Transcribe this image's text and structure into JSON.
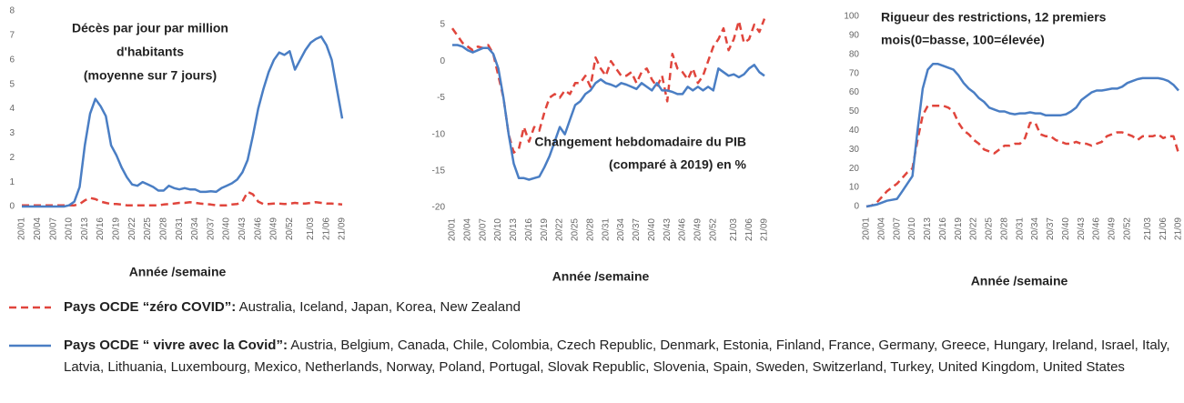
{
  "chart_data": [
    {
      "type": "line",
      "title": [
        "Décès par jour par million",
        "d'habitants",
        "(moyenne sur 7 jours)"
      ],
      "x_label": "Année /semaine",
      "categories": [
        "20/01",
        null,
        null,
        "20/04",
        null,
        null,
        "20/07",
        null,
        null,
        "20/10",
        null,
        null,
        "20/13",
        null,
        null,
        "20/16",
        null,
        null,
        "20/19",
        null,
        null,
        "20/22",
        null,
        null,
        "20/25",
        null,
        null,
        "20/28",
        null,
        null,
        "20/31",
        null,
        null,
        "20/34",
        null,
        null,
        "20/37",
        null,
        null,
        "20/40",
        null,
        null,
        "20/43",
        null,
        null,
        "20/46",
        null,
        null,
        "20/49",
        null,
        null,
        "20/52",
        null,
        null,
        null,
        "21/03",
        null,
        null,
        "21/06",
        null,
        null,
        "21/09"
      ],
      "ylim": [
        0,
        8
      ],
      "yticks": [
        0,
        1,
        2,
        3,
        4,
        5,
        6,
        7,
        8
      ],
      "series": [
        {
          "color": "#e0453c",
          "dash": true,
          "values": [
            0.05,
            0.05,
            0.05,
            0.05,
            0.05,
            0.05,
            0.05,
            0.05,
            0.05,
            0.05,
            0.05,
            0.1,
            0.25,
            0.35,
            0.3,
            0.2,
            0.15,
            0.1,
            0.1,
            0.08,
            0.05,
            0.05,
            0.05,
            0.05,
            0.05,
            0.05,
            0.05,
            0.08,
            0.1,
            0.12,
            0.15,
            0.15,
            0.18,
            0.15,
            0.12,
            0.1,
            0.08,
            0.05,
            0.05,
            0.05,
            0.08,
            0.1,
            0.2,
            0.6,
            0.5,
            0.2,
            0.1,
            0.1,
            0.12,
            0.12,
            0.1,
            0.12,
            0.15,
            0.12,
            0.12,
            0.15,
            0.18,
            0.15,
            0.12,
            0.12,
            0.1,
            0.08
          ]
        },
        {
          "color": "#4a7ec4",
          "dash": false,
          "values": [
            0,
            0,
            0,
            0,
            0,
            0,
            0,
            0,
            0,
            0.05,
            0.2,
            0.8,
            2.5,
            3.8,
            4.4,
            4.1,
            3.7,
            2.5,
            2.1,
            1.6,
            1.2,
            0.9,
            0.85,
            1.0,
            0.9,
            0.8,
            0.65,
            0.65,
            0.85,
            0.75,
            0.7,
            0.75,
            0.7,
            0.7,
            0.6,
            0.6,
            0.62,
            0.6,
            0.75,
            0.85,
            0.95,
            1.1,
            1.4,
            1.9,
            2.9,
            4.0,
            4.8,
            5.5,
            6.0,
            6.3,
            6.2,
            6.35,
            5.6,
            6.0,
            6.4,
            6.7,
            6.85,
            6.95,
            6.6,
            6.0,
            4.8,
            3.6
          ]
        }
      ]
    },
    {
      "type": "line",
      "title": [
        "Changement hebdomadaire du PIB",
        "(comparé à 2019) en %"
      ],
      "x_label": "Année /semaine",
      "categories": [
        "20/01",
        null,
        null,
        "20/04",
        null,
        null,
        "20/07",
        null,
        null,
        "20/10",
        null,
        null,
        "20/13",
        null,
        null,
        "20/16",
        null,
        null,
        "20/19",
        null,
        null,
        "20/22",
        null,
        null,
        "20/25",
        null,
        null,
        "20/28",
        null,
        null,
        "20/31",
        null,
        null,
        "20/34",
        null,
        null,
        "20/37",
        null,
        null,
        "20/40",
        null,
        null,
        "20/43",
        null,
        null,
        "20/46",
        null,
        null,
        "20/49",
        null,
        null,
        "20/52",
        null,
        null,
        null,
        "21/03",
        null,
        null,
        "21/06",
        null,
        null,
        "21/09"
      ],
      "ylim": [
        -20,
        6
      ],
      "yticks": [
        -20,
        -15,
        -10,
        -5,
        0,
        5
      ],
      "series": [
        {
          "color": "#e0453c",
          "dash": true,
          "values": [
            4.5,
            3.5,
            2.5,
            2,
            1.5,
            2,
            1.8,
            2.2,
            1,
            -2,
            -5,
            -10,
            -12.5,
            -12,
            -9,
            -11,
            -9,
            -9.5,
            -7,
            -5,
            -4.5,
            -5,
            -4,
            -4.5,
            -3,
            -3,
            -2,
            -3.5,
            0.5,
            -1,
            -2,
            0,
            -1,
            -2,
            -2,
            -1.5,
            -3,
            -1.5,
            -1,
            -2.5,
            -3.5,
            -2,
            -5.5,
            1,
            -1,
            -1.5,
            -2.5,
            -1,
            -3,
            -2,
            0,
            2,
            3,
            4.5,
            1.5,
            3,
            5.5,
            2.5,
            3,
            5,
            4,
            5.8
          ]
        },
        {
          "color": "#4a7ec4",
          "dash": false,
          "values": [
            2.2,
            2.2,
            2.0,
            1.5,
            1.2,
            1.5,
            1.8,
            1.8,
            1.0,
            -1,
            -5,
            -10,
            -14,
            -16,
            -16,
            -16.2,
            -16,
            -15.8,
            -14.5,
            -13,
            -11,
            -9,
            -10,
            -8,
            -6,
            -5.5,
            -4.5,
            -4,
            -3,
            -2.5,
            -3,
            -3.2,
            -3.5,
            -3,
            -3.2,
            -3.5,
            -3.8,
            -3,
            -3.5,
            -4,
            -3,
            -4,
            -4,
            -4.2,
            -4.5,
            -4.5,
            -3.5,
            -4,
            -3.5,
            -4,
            -3.5,
            -4,
            -1,
            -1.5,
            -2,
            -1.8,
            -2.2,
            -1.8,
            -1,
            -0.5,
            -1.5,
            -2
          ]
        }
      ]
    },
    {
      "type": "line",
      "title": [
        "Rigueur des restrictions, 12 premiers",
        "mois(0=basse, 100=élevée)"
      ],
      "x_label": "Année /semaine",
      "categories": [
        "20/01",
        null,
        null,
        "20/04",
        null,
        null,
        "20/07",
        null,
        null,
        "20/10",
        null,
        null,
        "20/13",
        null,
        null,
        "20/16",
        null,
        null,
        "20/19",
        null,
        null,
        "20/22",
        null,
        null,
        "20/25",
        null,
        null,
        "20/28",
        null,
        null,
        "20/31",
        null,
        null,
        "20/34",
        null,
        null,
        "20/37",
        null,
        null,
        "20/40",
        null,
        null,
        "20/43",
        null,
        null,
        "20/46",
        null,
        null,
        "20/49",
        null,
        null,
        "20/52",
        null,
        null,
        null,
        "21/03",
        null,
        null,
        "21/06",
        null,
        null,
        "21/09"
      ],
      "ylim": [
        0,
        100
      ],
      "yticks": [
        0,
        10,
        20,
        30,
        40,
        50,
        60,
        70,
        80,
        90,
        100
      ],
      "series": [
        {
          "color": "#e0453c",
          "dash": true,
          "values": [
            0,
            0.5,
            2,
            5,
            8,
            10,
            12,
            15,
            18,
            20,
            35,
            48,
            53,
            53,
            53,
            53,
            52,
            50,
            44,
            40,
            38,
            35,
            33,
            30,
            29,
            28,
            30,
            32,
            32,
            33,
            33,
            36,
            44,
            44,
            38,
            37,
            37,
            35,
            34,
            33,
            33,
            34,
            33,
            33,
            32,
            33,
            34,
            37,
            38,
            39,
            39,
            38,
            37,
            35,
            37,
            37,
            37,
            38,
            36,
            37,
            37,
            28
          ]
        },
        {
          "color": "#4a7ec4",
          "dash": false,
          "values": [
            0,
            0.5,
            1,
            2,
            3,
            3.5,
            4,
            8,
            12,
            16,
            40,
            62,
            72,
            75,
            75,
            74,
            73,
            72,
            69,
            65,
            62,
            60,
            57,
            55,
            52,
            51,
            50,
            50,
            49,
            48.5,
            49,
            49,
            49.5,
            49,
            49,
            48,
            48,
            48,
            48,
            48.5,
            50,
            52,
            56,
            58,
            60,
            61,
            61,
            61.5,
            62,
            62,
            63,
            65,
            66,
            67,
            67.5,
            67.5,
            67.5,
            67.5,
            67,
            66,
            64,
            61
          ]
        }
      ]
    }
  ],
  "legend": [
    {
      "label": "Pays OCDE “zéro COVID”:",
      "countries": "Australia, Iceland, Japan, Korea, New Zealand"
    },
    {
      "label": "Pays OCDE “ vivre avec la Covid”:",
      "countries": "Austria, Belgium, Canada, Chile, Colombia, Czech Republic, Denmark, Estonia, Finland, France, Germany, Greece, Hungary, Ireland, Israel, Italy, Latvia, Lithuania, Luxembourg, Mexico, Netherlands, Norway, Poland, Portugal, Slovak Republic, Slovenia, Spain, Sweden, Switzerland, Turkey, United Kingdom, United States"
    }
  ]
}
